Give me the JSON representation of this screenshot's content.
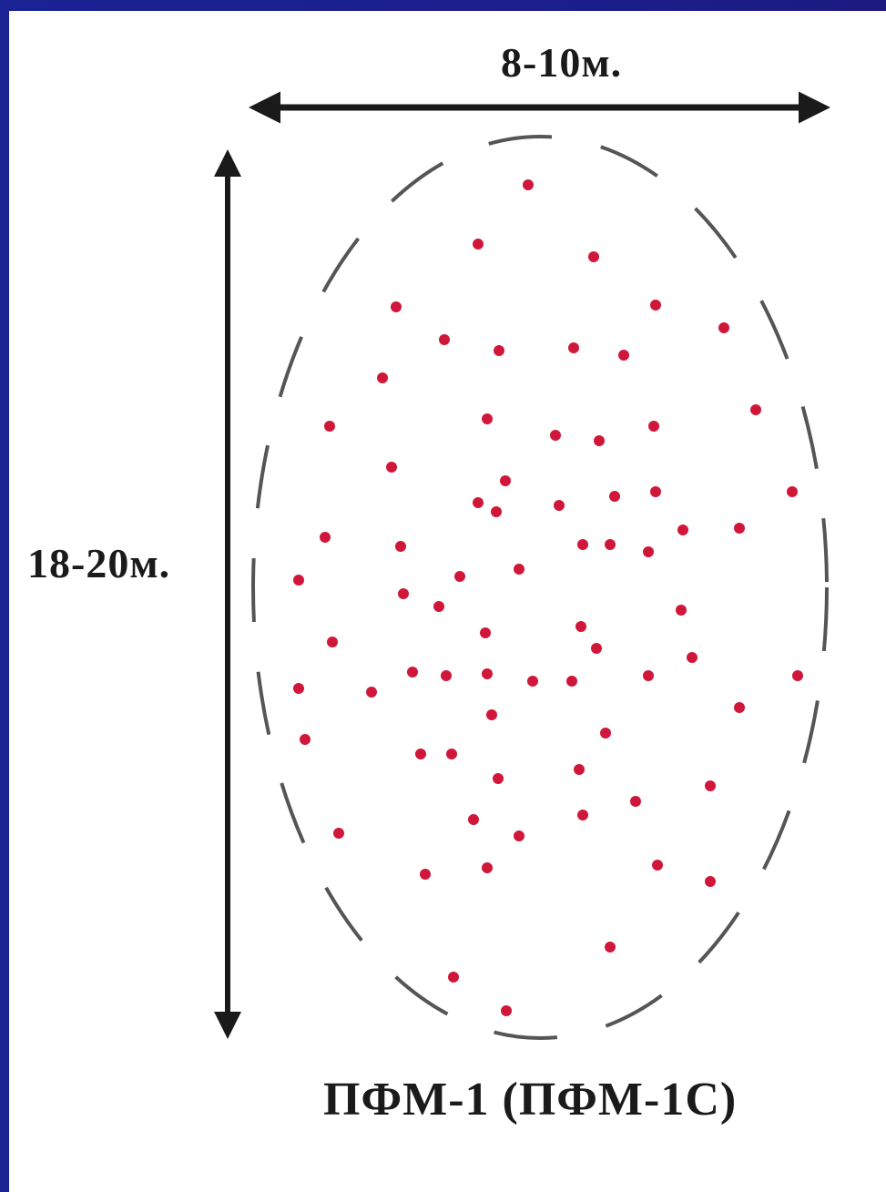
{
  "labels": {
    "width": "8-10м.",
    "height": "18-20м.",
    "caption": "ПФМ-1 (ПФМ-1С)"
  },
  "colors": {
    "frame": "#1b1f8c",
    "panel": "#ffffff",
    "arrow": "#1a1a1a",
    "ellipse_dash": "#555555",
    "mine_dot": "#d0173a"
  }
}
